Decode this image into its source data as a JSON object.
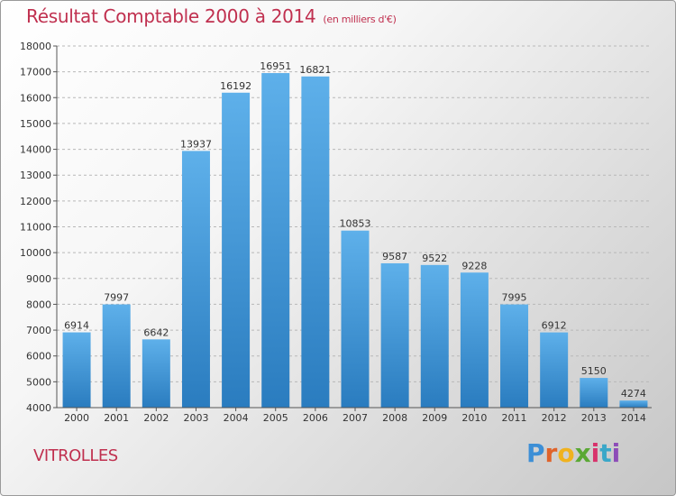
{
  "title": "Résultat Comptable 2000 à 2014",
  "subtitle": "(en milliers d'€)",
  "commune": "VITROLLES",
  "brand": {
    "letters": [
      "P",
      "r",
      "o",
      "x",
      "i",
      "t",
      "i"
    ],
    "colors": [
      "#3d8fd6",
      "#e0632a",
      "#f0b21e",
      "#5aa834",
      "#d8336c",
      "#3aa7c8",
      "#8d4db8"
    ]
  },
  "colors": {
    "bar_top": "#5eb0ea",
    "bar_bottom": "#2a7cbf",
    "title": "#c0304f"
  },
  "chart_data": {
    "type": "bar",
    "title": "Résultat Comptable 2000 à 2014",
    "categories": [
      "2000",
      "2001",
      "2002",
      "2003",
      "2004",
      "2005",
      "2006",
      "2007",
      "2008",
      "2009",
      "2010",
      "2011",
      "2012",
      "2013",
      "2014"
    ],
    "values": [
      6914,
      7997,
      6642,
      13937,
      16192,
      16951,
      16821,
      10853,
      9587,
      9522,
      9228,
      7995,
      6912,
      5150,
      4274
    ],
    "ylim": [
      4000,
      18000
    ],
    "yticks": [
      4000,
      5000,
      6000,
      7000,
      8000,
      9000,
      10000,
      11000,
      12000,
      13000,
      14000,
      15000,
      16000,
      17000,
      18000
    ],
    "grid": "horizontal dashed",
    "data_labels": true
  }
}
